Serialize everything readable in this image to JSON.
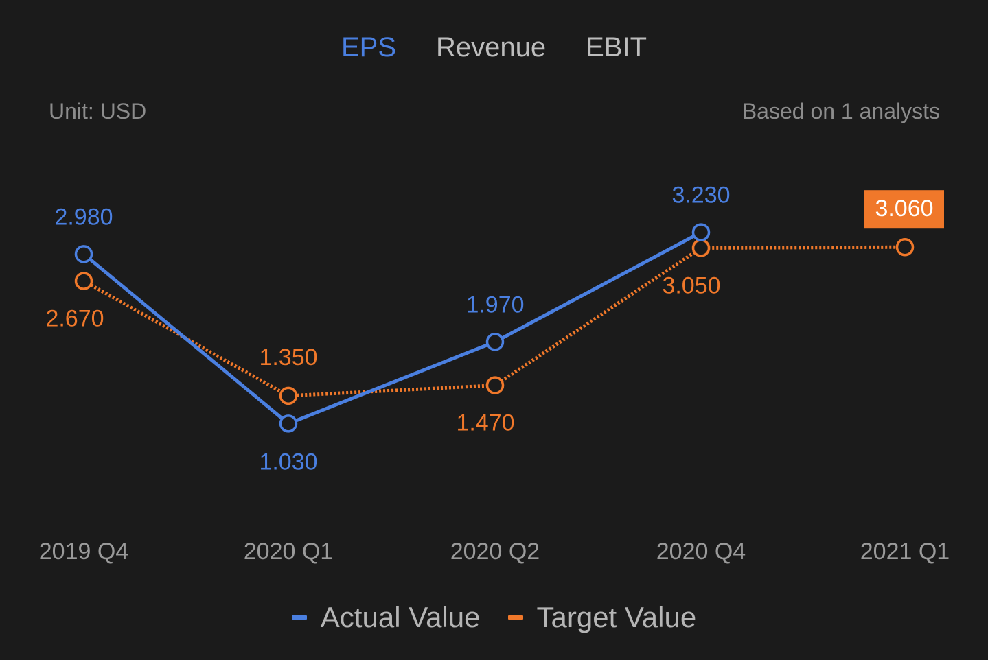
{
  "tabs": [
    {
      "label": "EPS",
      "active": true
    },
    {
      "label": "Revenue",
      "active": false
    },
    {
      "label": "EBIT",
      "active": false
    }
  ],
  "unit_label": "Unit: USD",
  "analysts_label": "Based on 1 analysts",
  "colors": {
    "actual": "#4a7fe0",
    "target": "#f0782a",
    "background": "#1b1b1b",
    "highlight_text": "#ffffff"
  },
  "chart_data": {
    "type": "line",
    "categories": [
      "2019 Q4",
      "2020 Q1",
      "2020 Q2",
      "2020 Q4",
      "2021 Q1"
    ],
    "series": [
      {
        "name": "Actual Value",
        "color": "#4a7fe0",
        "values": [
          2.98,
          1.03,
          1.97,
          3.23,
          null
        ],
        "labels": [
          "2.980",
          "1.030",
          "1.970",
          "3.230",
          ""
        ],
        "line_style": "solid"
      },
      {
        "name": "Target Value",
        "color": "#f0782a",
        "values": [
          2.67,
          1.35,
          1.47,
          3.05,
          3.06
        ],
        "labels": [
          "2.670",
          "1.350",
          "1.470",
          "3.050",
          "3.060"
        ],
        "line_style": "dotted",
        "highlight_last": true
      }
    ],
    "grid": false,
    "legend_position": "bottom-center"
  }
}
